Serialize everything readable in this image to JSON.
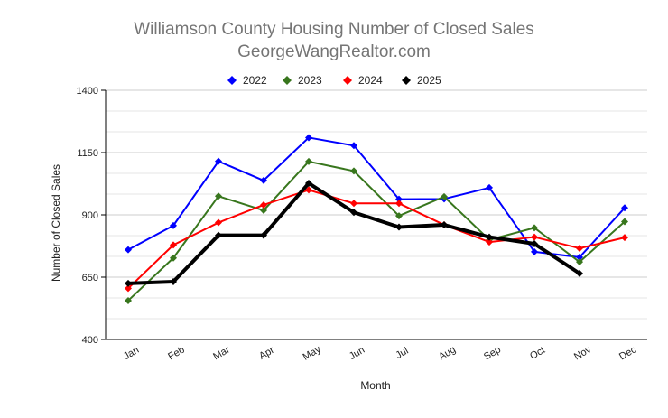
{
  "chart_data": {
    "type": "line",
    "title": "Williamson County Housing Number of Closed Sales",
    "subtitle": "GeorgeWangRealtor.com",
    "xlabel": "Month",
    "ylabel": "Number of Closed Sales",
    "ylim": [
      400,
      1400
    ],
    "yticks": [
      "400",
      "650",
      "900",
      "1150",
      "1400"
    ],
    "grid": true,
    "legend_position": "top",
    "categories": [
      "Jan",
      "Feb",
      "Mar",
      "Apr",
      "May",
      "Jun",
      "Jul",
      "Aug",
      "Sep",
      "Oct",
      "Nov",
      "Dec"
    ],
    "series": [
      {
        "name": "2022",
        "color": "#0000ff",
        "values": [
          760,
          857,
          1115,
          1038,
          1210,
          1178,
          963,
          964,
          1009,
          752,
          730,
          928
        ]
      },
      {
        "name": "2023",
        "color": "#38761d",
        "values": [
          556,
          727,
          975,
          918,
          1114,
          1076,
          896,
          973,
          800,
          848,
          711,
          873
        ]
      },
      {
        "name": "2024",
        "color": "#ff0000",
        "values": [
          605,
          779,
          869,
          940,
          1000,
          946,
          946,
          860,
          791,
          811,
          766,
          809
        ]
      },
      {
        "name": "2025",
        "color": "#000000",
        "values": [
          625,
          632,
          818,
          818,
          1027,
          910,
          851,
          860,
          811,
          784,
          665,
          null
        ]
      }
    ]
  }
}
